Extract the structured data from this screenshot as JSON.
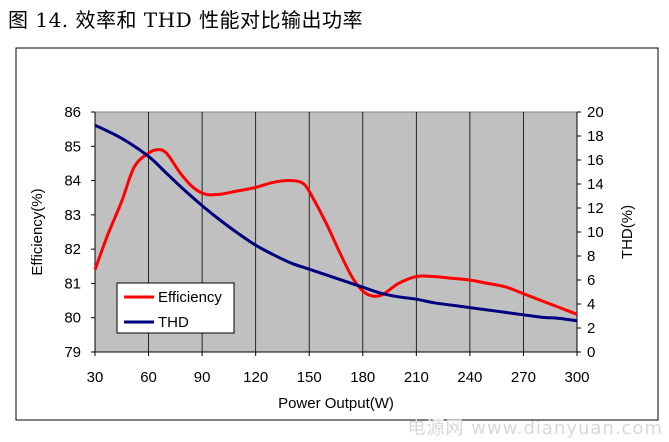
{
  "caption": "图 14. 效率和 THD 性能对比输出功率",
  "watermark": "电源网 www.dianyuan.com",
  "chart_data": {
    "type": "line",
    "xlabel": "Power Output(W)",
    "ylabel_left": "Efficiency(%)",
    "ylabel_right": "THD(%)",
    "xlim": [
      30,
      300
    ],
    "ylim_left": [
      79,
      86
    ],
    "ylim_right": [
      0,
      20
    ],
    "x_ticks": [
      "30",
      "60",
      "90",
      "120",
      "150",
      "180",
      "210",
      "240",
      "270",
      "300"
    ],
    "y_left_ticks": [
      "79",
      "80",
      "81",
      "82",
      "83",
      "84",
      "85",
      "86"
    ],
    "y_right_ticks": [
      "0",
      "2",
      "4",
      "6",
      "8",
      "10",
      "12",
      "14",
      "16",
      "18",
      "20"
    ],
    "grid": true,
    "legend_position": "bottom-left",
    "series": [
      {
        "name": "Efficiency",
        "axis": "left",
        "color": "#ff0000",
        "x": [
          30,
          37,
          45,
          52,
          60,
          65,
          70,
          78,
          85,
          92,
          100,
          110,
          120,
          130,
          140,
          147,
          152,
          160,
          168,
          175,
          182,
          190,
          200,
          210,
          220,
          230,
          240,
          250,
          260,
          270,
          280,
          290,
          300
        ],
        "y": [
          81.4,
          82.4,
          83.4,
          84.4,
          84.8,
          84.9,
          84.8,
          84.2,
          83.8,
          83.6,
          83.6,
          83.7,
          83.8,
          83.95,
          84.0,
          83.9,
          83.5,
          82.7,
          81.8,
          81.1,
          80.7,
          80.65,
          81.0,
          81.2,
          81.2,
          81.15,
          81.1,
          81.0,
          80.9,
          80.7,
          80.5,
          80.3,
          80.1
        ]
      },
      {
        "name": "THD",
        "axis": "right",
        "color": "#00007f",
        "x": [
          30,
          45,
          60,
          70,
          80,
          90,
          100,
          110,
          120,
          130,
          140,
          150,
          160,
          170,
          180,
          190,
          200,
          210,
          220,
          230,
          240,
          250,
          260,
          270,
          280,
          290,
          300
        ],
        "y": [
          18.9,
          17.8,
          16.3,
          14.9,
          13.5,
          12.2,
          11.0,
          9.9,
          8.9,
          8.1,
          7.4,
          6.9,
          6.4,
          5.9,
          5.4,
          4.9,
          4.6,
          4.4,
          4.1,
          3.9,
          3.7,
          3.5,
          3.3,
          3.1,
          2.9,
          2.8,
          2.6
        ]
      }
    ]
  }
}
